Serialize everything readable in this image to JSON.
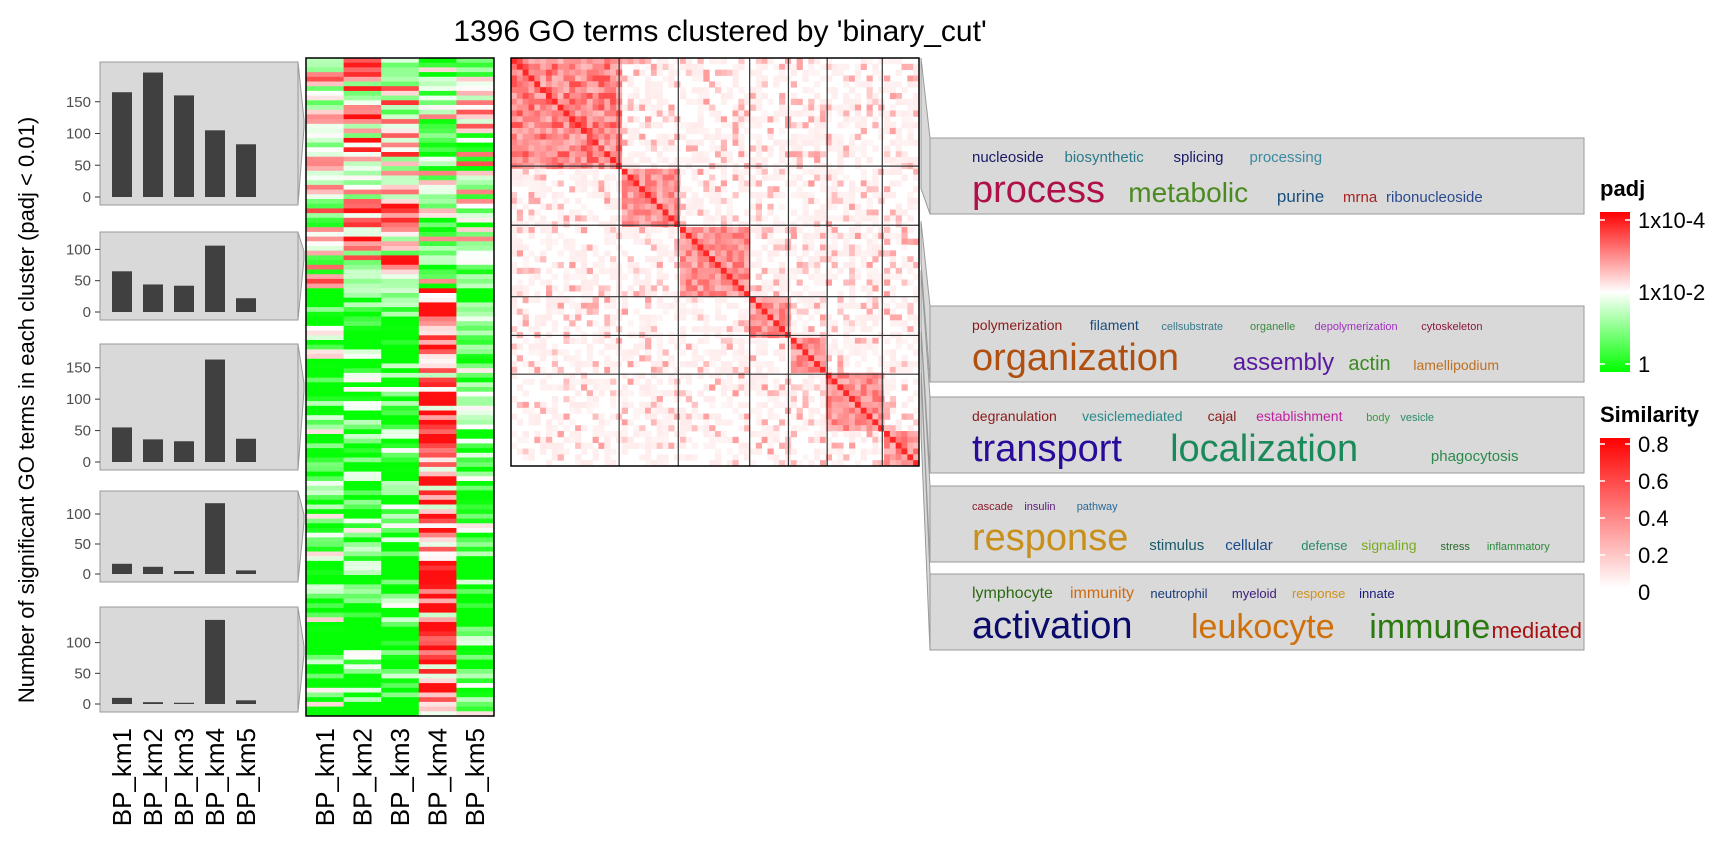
{
  "chart_data": {
    "type": "heatmap",
    "title": "1396 GO terms clustered by 'binary_cut'",
    "ylabel": "Number of significant GO terms in each cluster (padj < 0.01)",
    "columns": [
      "BP_km1",
      "BP_km2",
      "BP_km3",
      "BP_km4",
      "BP_km5"
    ],
    "cluster_counts": [
      {
        "cluster": 1,
        "values": [
          165,
          196,
          160,
          105,
          83
        ],
        "ticks": [
          0,
          50,
          100,
          150
        ],
        "ylim": [
          0,
          200
        ]
      },
      {
        "cluster": 2,
        "values": [
          65,
          44,
          42,
          106,
          22
        ],
        "ticks": [
          0,
          50,
          100
        ],
        "ylim": [
          0,
          115
        ]
      },
      {
        "cluster": 3,
        "values": [
          55,
          36,
          33,
          163,
          37
        ],
        "ticks": [
          0,
          50,
          100,
          150
        ],
        "ylim": [
          0,
          175
        ]
      },
      {
        "cluster": 4,
        "values": [
          17,
          12,
          5,
          118,
          6
        ],
        "ticks": [
          0,
          50,
          100
        ],
        "ylim": [
          0,
          125
        ]
      },
      {
        "cluster": 5,
        "values": [
          10,
          3,
          2,
          137,
          6
        ],
        "ticks": [
          0,
          50,
          100
        ],
        "ylim": [
          0,
          145
        ]
      }
    ],
    "similarity_blocks": [
      0.265,
      0.145,
      0.175,
      0.095,
      0.095,
      0.135,
      0.09
    ],
    "word_clouds": [
      {
        "cluster": 1,
        "lines": [
          [
            {
              "w": "nucleoside",
              "c": "#1a1a66",
              "s": 15
            },
            {
              "w": "biosynthetic",
              "c": "#2a7a8a",
              "s": 15
            },
            {
              "w": "splicing",
              "c": "#1a1a66",
              "s": 15
            },
            {
              "w": "processing",
              "c": "#3a8aa0",
              "s": 15
            }
          ],
          [
            {
              "w": "process",
              "c": "#b0104a",
              "s": 38
            },
            {
              "w": "metabolic",
              "c": "#4a8a20",
              "s": 28
            },
            {
              "w": "purine",
              "c": "#1a5080",
              "s": 17
            },
            {
              "w": "mrna",
              "c": "#aa2020",
              "s": 15
            },
            {
              "w": "ribonucleoside",
              "c": "#2a4a90",
              "s": 15
            }
          ]
        ]
      },
      {
        "cluster": 2,
        "lines": [
          [
            {
              "w": "polymerization",
              "c": "#8a1a1a",
              "s": 14
            },
            {
              "w": "filament",
              "c": "#1a4a7a",
              "s": 14
            },
            {
              "w": "cellsubstrate",
              "c": "#3a7a8a",
              "s": 11
            },
            {
              "w": "organelle",
              "c": "#3a8a40",
              "s": 11
            },
            {
              "w": "depolymerization",
              "c": "#a030c0",
              "s": 11
            },
            {
              "w": "cytoskeleton",
              "c": "#8a1a3a",
              "s": 11
            }
          ],
          [
            {
              "w": "organization",
              "c": "#b05010",
              "s": 38
            },
            {
              "w": "assembly",
              "c": "#5a1aa0",
              "s": 24
            },
            {
              "w": "actin",
              "c": "#3a8a20",
              "s": 20
            },
            {
              "w": "lamellipodium",
              "c": "#c07020",
              "s": 14
            }
          ]
        ]
      },
      {
        "cluster": 3,
        "lines": [
          [
            {
              "w": "degranulation",
              "c": "#8a1a1a",
              "s": 14
            },
            {
              "w": "vesiclemediated",
              "c": "#2a8a8a",
              "s": 14
            },
            {
              "w": "cajal",
              "c": "#8a1a1a",
              "s": 14
            },
            {
              "w": "establishment",
              "c": "#c020a0",
              "s": 14
            },
            {
              "w": "body",
              "c": "#3a9a40",
              "s": 11
            },
            {
              "w": "vesicle",
              "c": "#2a8a6a",
              "s": 11
            }
          ],
          [
            {
              "w": "transport",
              "c": "#2a0a9a",
              "s": 38
            },
            {
              "w": "localization",
              "c": "#1a8a5a",
              "s": 38
            },
            {
              "w": "phagocytosis",
              "c": "#2a8a4a",
              "s": 15
            }
          ]
        ]
      },
      {
        "cluster": 4,
        "lines": [
          [
            {
              "w": "cascade",
              "c": "#8a1a2a",
              "s": 11
            },
            {
              "w": "insulin",
              "c": "#5a1a7a",
              "s": 11
            },
            {
              "w": "pathway",
              "c": "#2a6a9a",
              "s": 11
            }
          ],
          [
            {
              "w": "response",
              "c": "#c8901a",
              "s": 38
            },
            {
              "w": "stimulus",
              "c": "#1a5a6a",
              "s": 15
            },
            {
              "w": "cellular",
              "c": "#1a4a8a",
              "s": 15
            },
            {
              "w": "defense",
              "c": "#2a8a6a",
              "s": 13
            },
            {
              "w": "signaling",
              "c": "#7aaa20",
              "s": 14
            },
            {
              "w": "stress",
              "c": "#2a6a2a",
              "s": 11
            },
            {
              "w": "inflammatory",
              "c": "#2a8a3a",
              "s": 11
            }
          ]
        ]
      },
      {
        "cluster": 5,
        "lines": [
          [
            {
              "w": "lymphocyte",
              "c": "#2a6a10",
              "s": 16
            },
            {
              "w": "immunity",
              "c": "#d06a10",
              "s": 16
            },
            {
              "w": "neutrophil",
              "c": "#1a3a7a",
              "s": 13
            },
            {
              "w": "myeloid",
              "c": "#3a1a7a",
              "s": 13
            },
            {
              "w": "response",
              "c": "#d0901a",
              "s": 13
            },
            {
              "w": "innate",
              "c": "#1a1a7a",
              "s": 13
            }
          ],
          [
            {
              "w": "activation",
              "c": "#0a0a6a",
              "s": 38
            },
            {
              "w": "leukocyte",
              "c": "#d0700a",
              "s": 34
            },
            {
              "w": "immune",
              "c": "#2a7a10",
              "s": 34
            },
            {
              "w": "mediated",
              "c": "#aa1010",
              "s": 22
            }
          ]
        ]
      }
    ],
    "legend_padj": {
      "title": "padj",
      "labels": [
        "1x10-4",
        "1x10-2",
        "1"
      ],
      "colors": [
        "#ff0000",
        "#ffffff",
        "#00ff00"
      ]
    },
    "legend_similarity": {
      "title": "Similarity",
      "labels": [
        "0.8",
        "0.6",
        "0.4",
        "0.2",
        "0"
      ],
      "colors": [
        "#ff0000",
        "#ffffff"
      ]
    },
    "bar_color": "#404040"
  }
}
